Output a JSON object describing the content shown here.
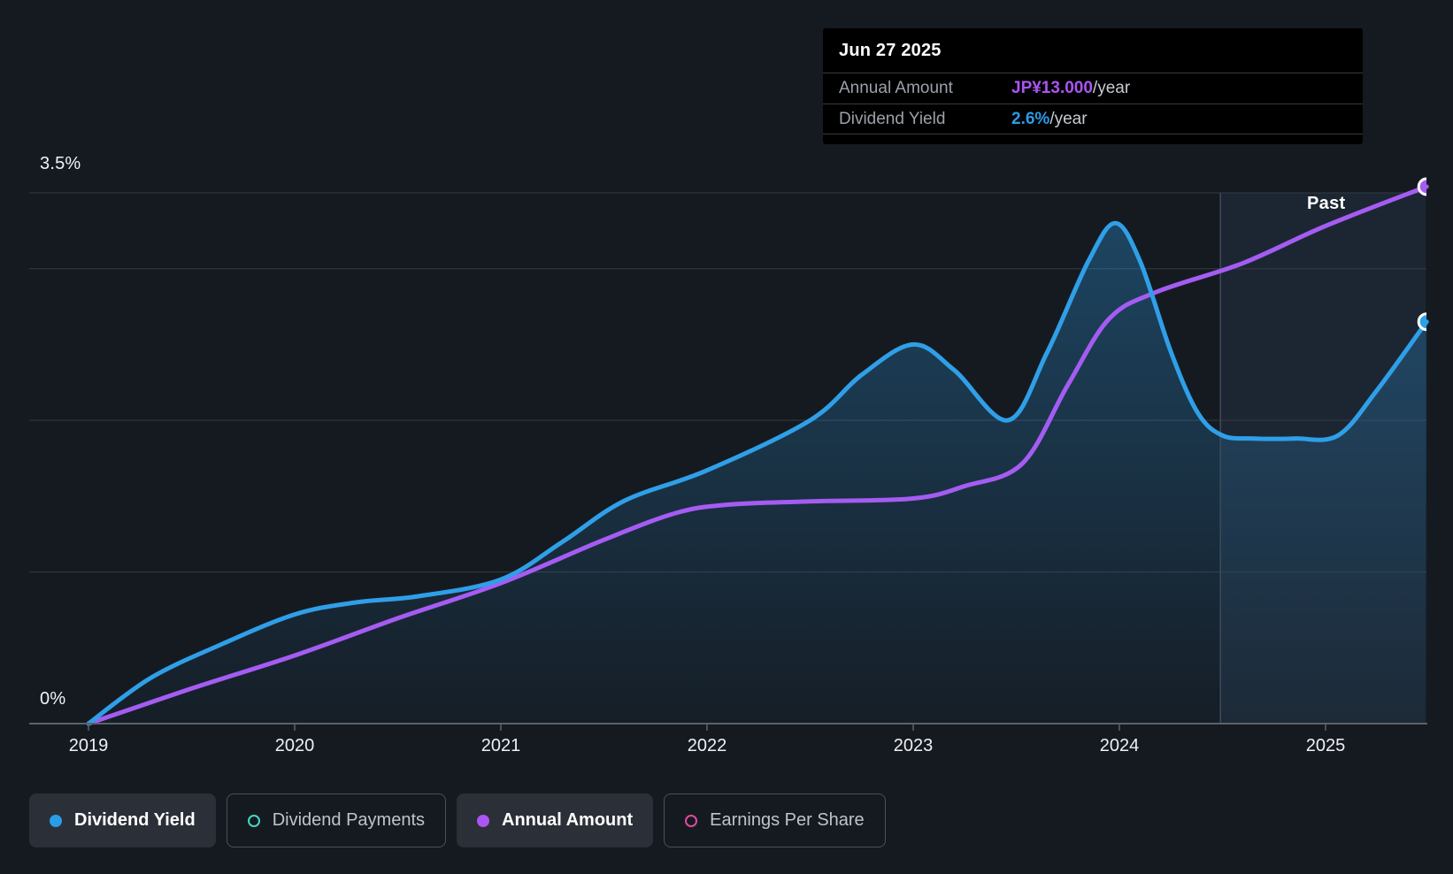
{
  "tooltip": {
    "date": "Jun 27 2025",
    "rows": [
      {
        "label": "Annual Amount",
        "value": "JP¥13.000",
        "suffix": "/year",
        "color": "#ab55f2"
      },
      {
        "label": "Dividend Yield",
        "value": "2.6%",
        "suffix": "/year",
        "color": "#2b9ce8"
      }
    ]
  },
  "chart_data": {
    "type": "line",
    "title": "Dividend history: dividend yield and annual dividend amount, 2019 - Jun 27 2025",
    "x_axis": {
      "ticks": [
        "2019",
        "2020",
        "2021",
        "2022",
        "2023",
        "2024",
        "2025"
      ],
      "range": [
        2018.71,
        2025.49
      ]
    },
    "y_axis": {
      "unit": "%",
      "range": [
        0,
        3.5
      ],
      "label_top": "3.5%",
      "label_bottom": "0%",
      "gridlines_pct": [
        3.5,
        3,
        2,
        1
      ],
      "grid_on": true
    },
    "divider": {
      "t": 2024.49,
      "label": "Past"
    },
    "legend_position": "bottom-left",
    "series": [
      {
        "name": "Dividend Yield",
        "unit": "%",
        "color": "#2f9fe8",
        "area": true,
        "endpoint_dot": true,
        "points": [
          [
            2019.0,
            0
          ],
          [
            2019.3,
            0.3
          ],
          [
            2019.64,
            0.52
          ],
          [
            2020.0,
            0.72
          ],
          [
            2020.3,
            0.8
          ],
          [
            2020.6,
            0.84
          ],
          [
            2021.0,
            0.95
          ],
          [
            2021.3,
            1.2
          ],
          [
            2021.6,
            1.47
          ],
          [
            2022.0,
            1.67
          ],
          [
            2022.5,
            2.0
          ],
          [
            2022.75,
            2.3
          ],
          [
            2023.0,
            2.5
          ],
          [
            2023.2,
            2.33
          ],
          [
            2023.46,
            2.0
          ],
          [
            2023.65,
            2.45
          ],
          [
            2023.85,
            3.05
          ],
          [
            2023.98,
            3.3
          ],
          [
            2024.1,
            3.05
          ],
          [
            2024.25,
            2.45
          ],
          [
            2024.38,
            2.05
          ],
          [
            2024.5,
            1.9
          ],
          [
            2024.65,
            1.88
          ],
          [
            2024.85,
            1.88
          ],
          [
            2025.06,
            1.9
          ],
          [
            2025.25,
            2.2
          ],
          [
            2025.49,
            2.65
          ]
        ]
      },
      {
        "name": "Annual Amount",
        "unit": "JP¥/year",
        "color": "#a55cf2",
        "area": false,
        "endpoint_dot": true,
        "value_at_top_gridline": 13,
        "points": [
          [
            2019.0,
            0
          ],
          [
            2019.5,
            0.85
          ],
          [
            2020.0,
            1.65
          ],
          [
            2020.5,
            2.55
          ],
          [
            2021.0,
            3.4
          ],
          [
            2021.5,
            4.45
          ],
          [
            2021.85,
            5.1
          ],
          [
            2022.1,
            5.3
          ],
          [
            2022.5,
            5.38
          ],
          [
            2023.0,
            5.45
          ],
          [
            2023.25,
            5.75
          ],
          [
            2023.53,
            6.3
          ],
          [
            2023.75,
            8.2
          ],
          [
            2023.95,
            9.8
          ],
          [
            2024.18,
            10.45
          ],
          [
            2024.6,
            11.15
          ],
          [
            2025.0,
            12.05
          ],
          [
            2025.49,
            13.0
          ]
        ]
      }
    ]
  },
  "legend": {
    "items": [
      {
        "label": "Dividend Yield",
        "marker": "dot",
        "color": "#2b9ce8",
        "active": true
      },
      {
        "label": "Dividend Payments",
        "marker": "ring",
        "color": "#45d6c3",
        "active": false
      },
      {
        "label": "Annual Amount",
        "marker": "dot",
        "color": "#ab55f2",
        "active": true
      },
      {
        "label": "Earnings Per Share",
        "marker": "ring",
        "color": "#df4b9e",
        "active": false
      }
    ]
  },
  "colors": {
    "background": "#151a21",
    "gridline": "#343a42",
    "axis": "#5c6269",
    "divider_line": "#3e4a57",
    "band_fill": "rgba(96,165,225,0.09)",
    "area_fill_base": "#2e9ee8",
    "label_text": "#f1f3f5"
  }
}
